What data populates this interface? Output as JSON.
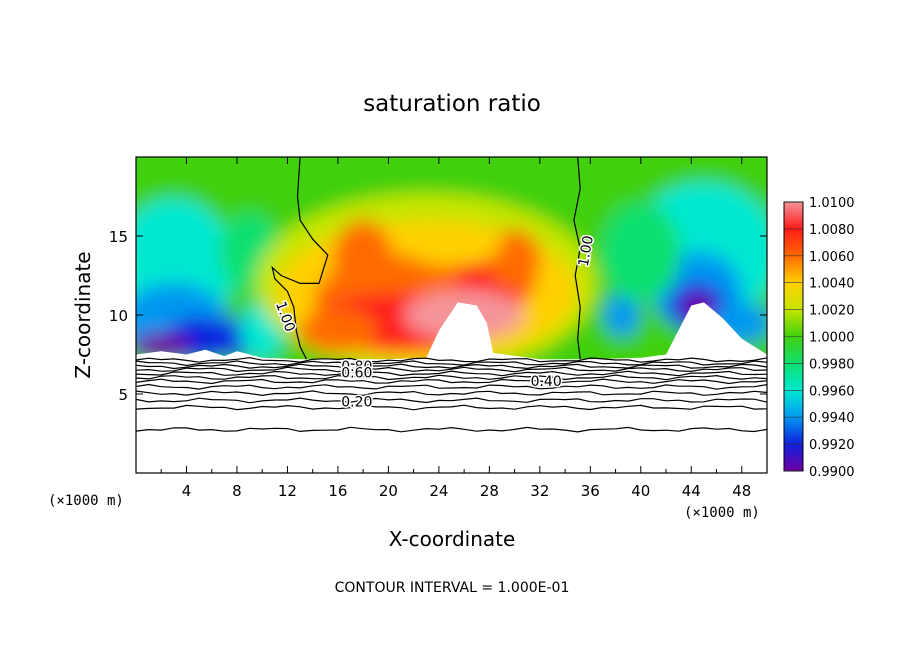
{
  "chart_data": {
    "type": "heatmap",
    "title": "saturation ratio",
    "xlabel": "X-coordinate",
    "ylabel": "Z-coordinate",
    "x_unit_left": "(×1000 m)",
    "x_unit_right": "(×1000 m)",
    "xlim": [
      0,
      50
    ],
    "ylim": [
      0,
      20
    ],
    "x_ticks": [
      "4",
      "8",
      "12",
      "16",
      "20",
      "24",
      "28",
      "32",
      "36",
      "40",
      "44",
      "48"
    ],
    "y_ticks": [
      "5",
      "10",
      "15"
    ],
    "colorbar_labels": [
      "1.0100",
      "1.0080",
      "1.0060",
      "1.0040",
      "1.0020",
      "1.0000",
      "0.9980",
      "0.9960",
      "0.9940",
      "0.9920",
      "0.9900"
    ],
    "colorbar_colors": [
      "#f4949a",
      "#ff1a1a",
      "#ff6a00",
      "#ffd000",
      "#c6e600",
      "#40d010",
      "#10e070",
      "#00e8d0",
      "#0098f0",
      "#1020e0",
      "#7000a0"
    ],
    "contour_labels": [
      {
        "text": "1.00",
        "x": 11.5,
        "y": 9.8,
        "rot": 70
      },
      {
        "text": "1.00",
        "x": 36.0,
        "y": 14.0,
        "rot": -80
      },
      {
        "text": "0.80",
        "x": 17.5,
        "y": 6.45,
        "rot": 0
      },
      {
        "text": "0.60",
        "x": 17.5,
        "y": 6.05,
        "rot": 0
      },
      {
        "text": "0.40",
        "x": 32.5,
        "y": 5.5,
        "rot": 0
      },
      {
        "text": "0.20",
        "x": 17.5,
        "y": 4.2,
        "rot": 0
      }
    ],
    "footer": "CONTOUR INTERVAL = 1.000E-01"
  }
}
